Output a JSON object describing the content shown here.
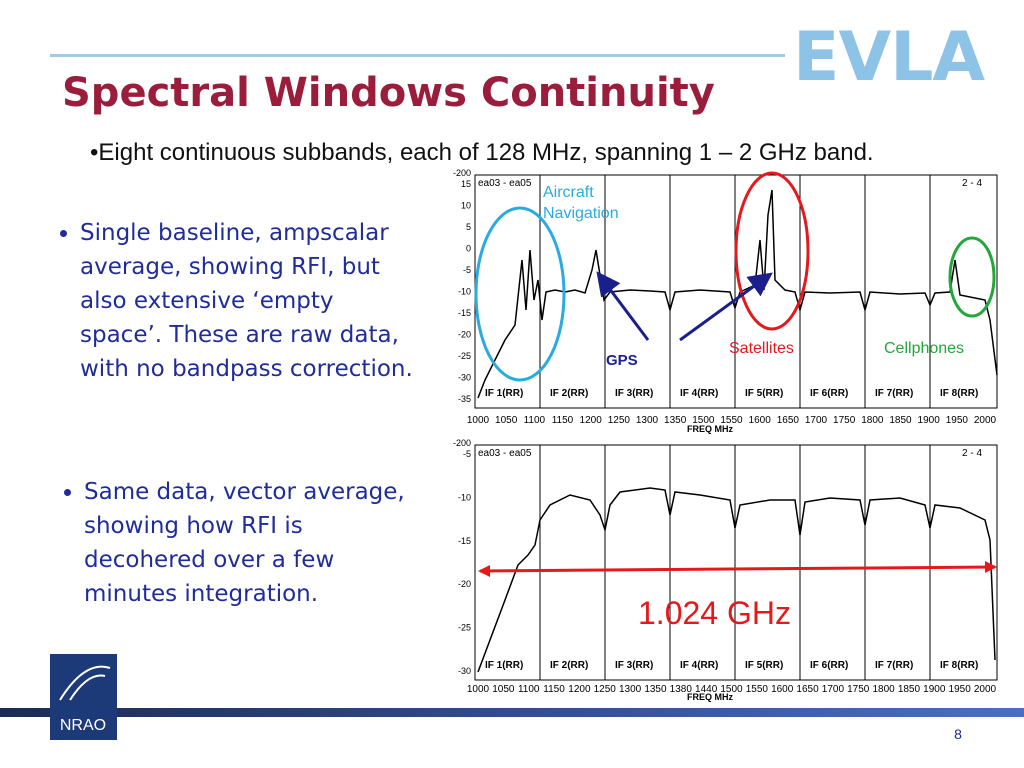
{
  "logo": "EVLA",
  "title": "Spectral Windows Continuity",
  "intro": "Eight continuous subbands, each of 128 MHz, spanning 1 – 2 GHz band.",
  "bullets": [
    "Single baseline, ampscalar average, showing RFI, but also extensive ‘empty space’. These are raw data, with no bandpass correction.",
    "Same data, vector average, showing how RFI is decohered over a few minutes integration."
  ],
  "plot1": {
    "baseline": "ea03 - ea05",
    "pol": "2 - 4",
    "yticks": [
      "-200",
      "15",
      "10",
      "5",
      "0",
      "-5",
      "-10",
      "-15",
      "-20",
      "-25",
      "-30",
      "-35"
    ],
    "xticks": [
      "1000",
      "1050",
      "1100",
      "1150",
      "1200",
      "1250",
      "1300",
      "1350",
      "1500",
      "1550",
      "1600",
      "1650",
      "1700",
      "1750",
      "1800",
      "1850",
      "1900",
      "1950",
      "2000"
    ],
    "ifs": [
      "IF 1(RR)",
      "IF 2(RR)",
      "IF 3(RR)",
      "IF 4(RR)",
      "IF 5(RR)",
      "IF 6(RR)",
      "IF 7(RR)",
      "IF 8(RR)"
    ],
    "xlabel": "FREQ MHz",
    "annotations": {
      "aircraft": "Aircraft Navigation",
      "gps": "GPS",
      "satellites": "Satellites",
      "cellphones": "Cellphones"
    }
  },
  "plot2": {
    "baseline": "ea03 - ea05",
    "pol": "2 - 4",
    "yticks": [
      "-200",
      "-5",
      "-10",
      "-15",
      "-20",
      "-25",
      "-30"
    ],
    "xticks": [
      "1000",
      "1050",
      "1100",
      "1150",
      "1200",
      "1250",
      "1300",
      "1350",
      "1380",
      "1440",
      "1500",
      "1550",
      "1600",
      "1650",
      "1700",
      "1750",
      "1800",
      "1850",
      "1900",
      "1950",
      "2000"
    ],
    "ifs": [
      "IF 1(RR)",
      "IF 2(RR)",
      "IF 3(RR)",
      "IF 4(RR)",
      "IF 5(RR)",
      "IF 6(RR)",
      "IF 7(RR)",
      "IF 8(RR)"
    ],
    "xlabel": "FREQ MHz",
    "annotation": "1.024 GHz"
  },
  "org": "NRAO",
  "page_number": "8"
}
